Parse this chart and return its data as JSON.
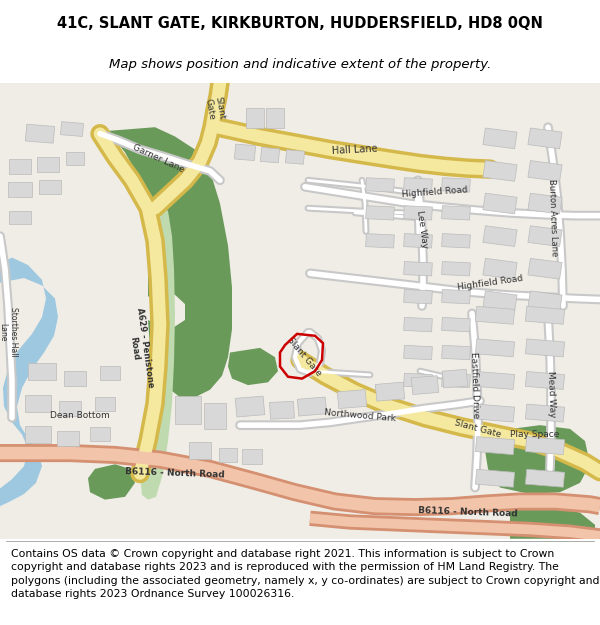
{
  "title_line1": "41C, SLANT GATE, KIRKBURTON, HUDDERSFIELD, HD8 0QN",
  "title_line2": "Map shows position and indicative extent of the property.",
  "footer": "Contains OS data © Crown copyright and database right 2021. This information is subject to Crown copyright and database rights 2023 and is reproduced with the permission of HM Land Registry. The polygons (including the associated geometry, namely x, y co-ordinates) are subject to Crown copyright and database rights 2023 Ordnance Survey 100026316.",
  "title_fontsize": 10.5,
  "subtitle_fontsize": 9.5,
  "footer_fontsize": 7.8,
  "map_bg": "#f0ede6",
  "road_yellow": "#f5e9a0",
  "road_yellow_stroke": "#d4b84a",
  "road_pink": "#f2c4aa",
  "road_pink_stroke": "#d49070",
  "road_white": "#ffffff",
  "road_gray_stroke": "#c8c8c8",
  "green_dark": "#6a9a5a",
  "green_light": "#c0dab0",
  "blue_water": "#9ec8e0",
  "plot_color": "#cc0000",
  "building_fill": "#dddddd",
  "building_edge": "#bbbbbb",
  "text_dark": "#222222",
  "fig_width": 6.0,
  "fig_height": 6.25
}
